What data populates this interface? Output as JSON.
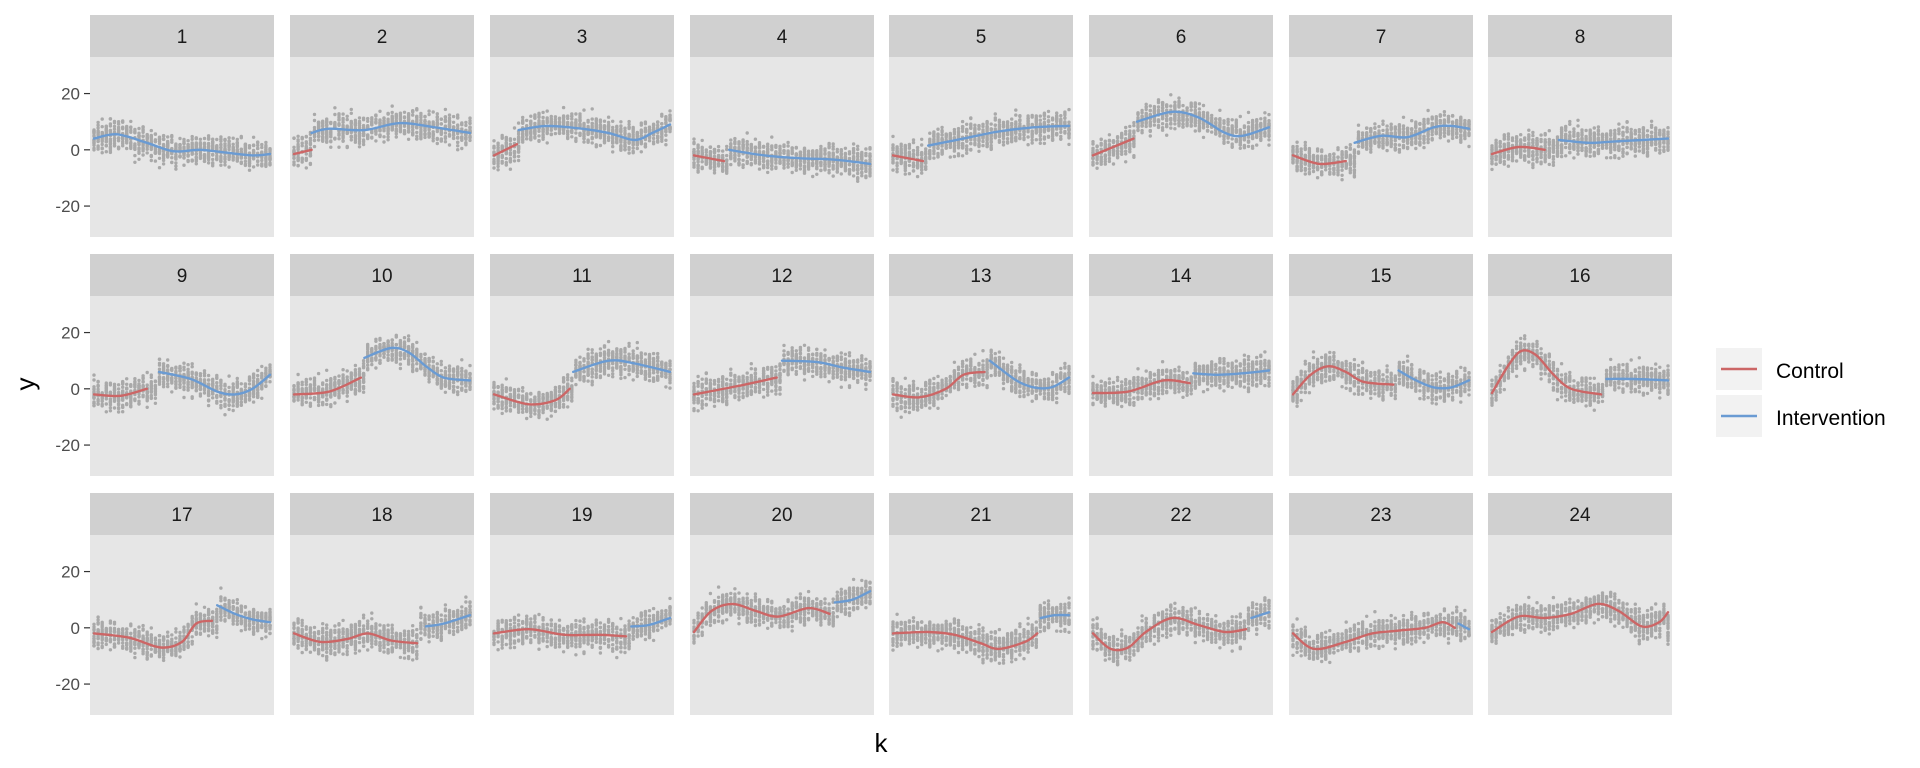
{
  "chart_data": {
    "type": "line",
    "facet_grid": {
      "rows": 3,
      "cols": 8
    },
    "xlabel": "k",
    "ylabel": "y",
    "ylim": [
      -31,
      33
    ],
    "y_ticks": [
      -20,
      0,
      20
    ],
    "grid": false,
    "panel_background": "#e6e6e6",
    "strip_background": "#d0d0d0",
    "point_color": "#a9a9a9",
    "legend": {
      "position": "right",
      "entries": [
        {
          "label": "Control",
          "color": "#cc6666"
        },
        {
          "label": "Intervention",
          "color": "#6a9bd3"
        }
      ]
    },
    "panels": [
      {
        "label": "1",
        "switch": 0,
        "control": [],
        "intervention": [
          [
            0,
            4
          ],
          [
            0.13,
            5.5
          ],
          [
            0.3,
            2.5
          ],
          [
            0.45,
            -0.5
          ],
          [
            0.6,
            0
          ],
          [
            0.75,
            -1
          ],
          [
            0.9,
            -2
          ],
          [
            1,
            -1.5
          ]
        ]
      },
      {
        "label": "2",
        "switch": 0.1,
        "control": [
          [
            0,
            -1.5
          ],
          [
            0.1,
            0
          ]
        ],
        "intervention": [
          [
            0.1,
            6
          ],
          [
            0.2,
            7.5
          ],
          [
            0.4,
            7
          ],
          [
            0.6,
            9.5
          ],
          [
            0.8,
            8
          ],
          [
            1,
            6
          ]
        ]
      },
      {
        "label": "3",
        "switch": 0.14,
        "control": [
          [
            0,
            -2
          ],
          [
            0.13,
            2
          ]
        ],
        "intervention": [
          [
            0.14,
            7
          ],
          [
            0.3,
            8.5
          ],
          [
            0.5,
            7.5
          ],
          [
            0.65,
            6
          ],
          [
            0.8,
            3.5
          ],
          [
            0.9,
            6
          ],
          [
            1,
            9
          ]
        ]
      },
      {
        "label": "4",
        "switch": 0.2,
        "control": [
          [
            0,
            -2
          ],
          [
            0.17,
            -4
          ]
        ],
        "intervention": [
          [
            0.2,
            0
          ],
          [
            0.4,
            -2
          ],
          [
            0.6,
            -3
          ],
          [
            0.8,
            -3.5
          ],
          [
            1,
            -5
          ]
        ]
      },
      {
        "label": "5",
        "switch": 0.2,
        "control": [
          [
            0,
            -2
          ],
          [
            0.17,
            -4
          ]
        ],
        "intervention": [
          [
            0.2,
            1.5
          ],
          [
            0.4,
            4
          ],
          [
            0.6,
            6.5
          ],
          [
            0.8,
            8
          ],
          [
            1,
            8.5
          ]
        ]
      },
      {
        "label": "6",
        "switch": 0.25,
        "control": [
          [
            0,
            -2
          ],
          [
            0.23,
            4
          ]
        ],
        "intervention": [
          [
            0.25,
            10
          ],
          [
            0.45,
            13.5
          ],
          [
            0.6,
            11.5
          ],
          [
            0.75,
            6
          ],
          [
            0.85,
            5
          ],
          [
            1,
            8
          ]
        ]
      },
      {
        "label": "7",
        "switch": 0.35,
        "control": [
          [
            0,
            -2
          ],
          [
            0.15,
            -5
          ],
          [
            0.3,
            -4
          ]
        ],
        "intervention": [
          [
            0.35,
            2.5
          ],
          [
            0.5,
            5
          ],
          [
            0.65,
            4.5
          ],
          [
            0.8,
            8
          ],
          [
            0.9,
            8.5
          ],
          [
            1,
            7.5
          ]
        ]
      },
      {
        "label": "8",
        "switch": 0.38,
        "control": [
          [
            0,
            -1.5
          ],
          [
            0.15,
            1
          ],
          [
            0.3,
            0
          ]
        ],
        "intervention": [
          [
            0.38,
            3.5
          ],
          [
            0.55,
            2.5
          ],
          [
            0.7,
            3
          ],
          [
            0.85,
            3.5
          ],
          [
            1,
            4
          ]
        ]
      },
      {
        "label": "9",
        "switch": 0.37,
        "control": [
          [
            0,
            -2
          ],
          [
            0.15,
            -2.5
          ],
          [
            0.3,
            0
          ]
        ],
        "intervention": [
          [
            0.37,
            6
          ],
          [
            0.55,
            3.5
          ],
          [
            0.7,
            -1
          ],
          [
            0.8,
            -2
          ],
          [
            0.9,
            0
          ],
          [
            1,
            5
          ]
        ]
      },
      {
        "label": "10",
        "switch": 0.4,
        "control": [
          [
            0,
            -2
          ],
          [
            0.2,
            -1
          ],
          [
            0.38,
            4
          ]
        ],
        "intervention": [
          [
            0.4,
            11
          ],
          [
            0.55,
            14.5
          ],
          [
            0.65,
            13
          ],
          [
            0.75,
            8
          ],
          [
            0.85,
            4
          ],
          [
            1,
            3
          ]
        ]
      },
      {
        "label": "11",
        "switch": 0.45,
        "control": [
          [
            0,
            -2
          ],
          [
            0.2,
            -5.5
          ],
          [
            0.35,
            -4
          ],
          [
            0.43,
            0
          ]
        ],
        "intervention": [
          [
            0.45,
            6
          ],
          [
            0.65,
            10
          ],
          [
            0.8,
            9
          ],
          [
            1,
            6
          ]
        ]
      },
      {
        "label": "12",
        "switch": 0.5,
        "control": [
          [
            0,
            -2
          ],
          [
            0.25,
            1
          ],
          [
            0.47,
            4
          ]
        ],
        "intervention": [
          [
            0.5,
            10
          ],
          [
            0.7,
            9.5
          ],
          [
            0.85,
            7.5
          ],
          [
            1,
            6
          ]
        ]
      },
      {
        "label": "13",
        "switch": 0.55,
        "control": [
          [
            0,
            -2
          ],
          [
            0.15,
            -3
          ],
          [
            0.3,
            0
          ],
          [
            0.4,
            5
          ],
          [
            0.52,
            6
          ]
        ],
        "intervention": [
          [
            0.55,
            10
          ],
          [
            0.7,
            3
          ],
          [
            0.8,
            0.5
          ],
          [
            0.9,
            0.5
          ],
          [
            1,
            4
          ]
        ]
      },
      {
        "label": "14",
        "switch": 0.57,
        "control": [
          [
            0,
            -1.5
          ],
          [
            0.2,
            -1
          ],
          [
            0.4,
            3
          ],
          [
            0.55,
            2
          ]
        ],
        "intervention": [
          [
            0.57,
            5.5
          ],
          [
            0.7,
            5
          ],
          [
            0.85,
            5.5
          ],
          [
            1,
            6.5
          ]
        ]
      },
      {
        "label": "15",
        "switch": 0.6,
        "control": [
          [
            0,
            -2
          ],
          [
            0.1,
            5
          ],
          [
            0.2,
            8
          ],
          [
            0.3,
            6
          ],
          [
            0.4,
            2.5
          ],
          [
            0.57,
            1.5
          ]
        ],
        "intervention": [
          [
            0.6,
            6.5
          ],
          [
            0.7,
            3
          ],
          [
            0.8,
            0.5
          ],
          [
            0.9,
            0.5
          ],
          [
            1,
            3
          ]
        ]
      },
      {
        "label": "16",
        "switch": 0.65,
        "control": [
          [
            0,
            -1.5
          ],
          [
            0.1,
            9
          ],
          [
            0.17,
            13.5
          ],
          [
            0.25,
            12
          ],
          [
            0.35,
            5
          ],
          [
            0.45,
            0
          ],
          [
            0.62,
            -2
          ]
        ],
        "intervention": [
          [
            0.65,
            3.5
          ],
          [
            0.8,
            3.5
          ],
          [
            1,
            3
          ]
        ]
      },
      {
        "label": "17",
        "switch": 0.7,
        "control": [
          [
            0,
            -2
          ],
          [
            0.2,
            -3.5
          ],
          [
            0.38,
            -7
          ],
          [
            0.5,
            -5
          ],
          [
            0.58,
            1.5
          ],
          [
            0.67,
            2.5
          ]
        ],
        "intervention": [
          [
            0.7,
            8
          ],
          [
            0.8,
            5
          ],
          [
            0.9,
            3
          ],
          [
            1,
            2
          ]
        ]
      },
      {
        "label": "18",
        "switch": 0.72,
        "control": [
          [
            0,
            -2
          ],
          [
            0.15,
            -5
          ],
          [
            0.3,
            -4
          ],
          [
            0.42,
            -2
          ],
          [
            0.55,
            -4.5
          ],
          [
            0.7,
            -5.5
          ]
        ],
        "intervention": [
          [
            0.75,
            0.5
          ],
          [
            0.85,
            1.5
          ],
          [
            1,
            4.5
          ]
        ]
      },
      {
        "label": "19",
        "switch": 0.77,
        "control": [
          [
            0,
            -2
          ],
          [
            0.2,
            -0.5
          ],
          [
            0.4,
            -2.5
          ],
          [
            0.6,
            -2.5
          ],
          [
            0.75,
            -3
          ]
        ],
        "intervention": [
          [
            0.78,
            0.5
          ],
          [
            0.88,
            1
          ],
          [
            1,
            3.5
          ]
        ]
      },
      {
        "label": "20",
        "switch": 0.8,
        "control": [
          [
            0,
            -1.5
          ],
          [
            0.1,
            6
          ],
          [
            0.22,
            8.5
          ],
          [
            0.35,
            6
          ],
          [
            0.48,
            4
          ],
          [
            0.65,
            7
          ],
          [
            0.77,
            5
          ]
        ],
        "intervention": [
          [
            0.8,
            9
          ],
          [
            0.9,
            10
          ],
          [
            1,
            13
          ]
        ]
      },
      {
        "label": "21",
        "switch": 0.83,
        "control": [
          [
            0,
            -2
          ],
          [
            0.2,
            -1.5
          ],
          [
            0.35,
            -2.5
          ],
          [
            0.5,
            -5.5
          ],
          [
            0.6,
            -7.5
          ],
          [
            0.75,
            -5
          ],
          [
            0.82,
            -2
          ]
        ],
        "intervention": [
          [
            0.84,
            3.5
          ],
          [
            0.92,
            4.5
          ],
          [
            1,
            4.5
          ]
        ]
      },
      {
        "label": "22",
        "switch": 0.88,
        "control": [
          [
            0,
            -2
          ],
          [
            0.1,
            -7.5
          ],
          [
            0.2,
            -7
          ],
          [
            0.3,
            -1.5
          ],
          [
            0.45,
            3.5
          ],
          [
            0.6,
            1
          ],
          [
            0.75,
            -1.5
          ],
          [
            0.87,
            -0.5
          ]
        ],
        "intervention": [
          [
            0.9,
            3.5
          ],
          [
            1,
            5.5
          ]
        ]
      },
      {
        "label": "23",
        "switch": 0.93,
        "control": [
          [
            0,
            -2
          ],
          [
            0.12,
            -7.5
          ],
          [
            0.3,
            -5
          ],
          [
            0.45,
            -2
          ],
          [
            0.6,
            -1
          ],
          [
            0.75,
            0
          ],
          [
            0.85,
            2
          ],
          [
            0.92,
            0
          ]
        ],
        "intervention": [
          [
            0.94,
            1.5
          ],
          [
            1,
            -0.5
          ]
        ]
      },
      {
        "label": "24",
        "switch": 1.0,
        "control": [
          [
            0,
            -1.5
          ],
          [
            0.15,
            4
          ],
          [
            0.3,
            3.5
          ],
          [
            0.45,
            5
          ],
          [
            0.6,
            8.5
          ],
          [
            0.72,
            6
          ],
          [
            0.85,
            0.5
          ],
          [
            0.95,
            2
          ],
          [
            1,
            5.5
          ]
        ],
        "intervention": []
      }
    ]
  }
}
